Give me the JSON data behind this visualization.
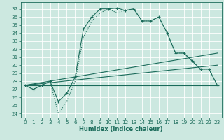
{
  "xlabel": "Humidex (Indice chaleur)",
  "bg_color": "#cce8e0",
  "grid_color": "#ffffff",
  "line_color": "#1a6b5a",
  "xlim": [
    -0.5,
    23.5
  ],
  "ylim": [
    23.5,
    37.8
  ],
  "xticks": [
    0,
    1,
    2,
    3,
    4,
    5,
    6,
    7,
    8,
    9,
    10,
    11,
    12,
    13,
    14,
    15,
    16,
    17,
    18,
    19,
    20,
    21,
    22,
    23
  ],
  "yticks": [
    24,
    25,
    26,
    27,
    28,
    29,
    30,
    31,
    32,
    33,
    34,
    35,
    36,
    37
  ],
  "line1_x": [
    0,
    1,
    2,
    3,
    4,
    5,
    6,
    7,
    8,
    9,
    10,
    11,
    12,
    13,
    14,
    15,
    16,
    17,
    18,
    19,
    20,
    21,
    22,
    23
  ],
  "line1_y": [
    27.5,
    27.0,
    27.5,
    28.0,
    25.5,
    26.5,
    28.5,
    34.5,
    36.0,
    37.0,
    37.0,
    37.1,
    36.8,
    37.0,
    35.5,
    35.5,
    36.0,
    34.0,
    31.5,
    31.5,
    30.5,
    29.5,
    29.5,
    27.5
  ],
  "line2_x": [
    0,
    1,
    2,
    3,
    4,
    5,
    6,
    7,
    8,
    9,
    10,
    11,
    12,
    13,
    14,
    15,
    16,
    17,
    18,
    19,
    20,
    21,
    22,
    23
  ],
  "line2_y": [
    27.5,
    27.0,
    27.5,
    28.0,
    24.0,
    25.5,
    28.0,
    33.5,
    35.5,
    36.5,
    37.0,
    36.5,
    36.8,
    37.0,
    35.5,
    35.5,
    36.0,
    34.0,
    31.5,
    31.5,
    30.5,
    29.5,
    29.5,
    27.5
  ],
  "line3_x": [
    0,
    23
  ],
  "line3_y": [
    27.5,
    31.5
  ],
  "line4_x": [
    0,
    23
  ],
  "line4_y": [
    27.5,
    30.0
  ],
  "line5_x": [
    0,
    23
  ],
  "line5_y": [
    27.5,
    27.5
  ],
  "xlabel_fontsize": 6.0,
  "tick_fontsize": 5.2,
  "linewidth": 0.8,
  "marker_size": 3.5
}
